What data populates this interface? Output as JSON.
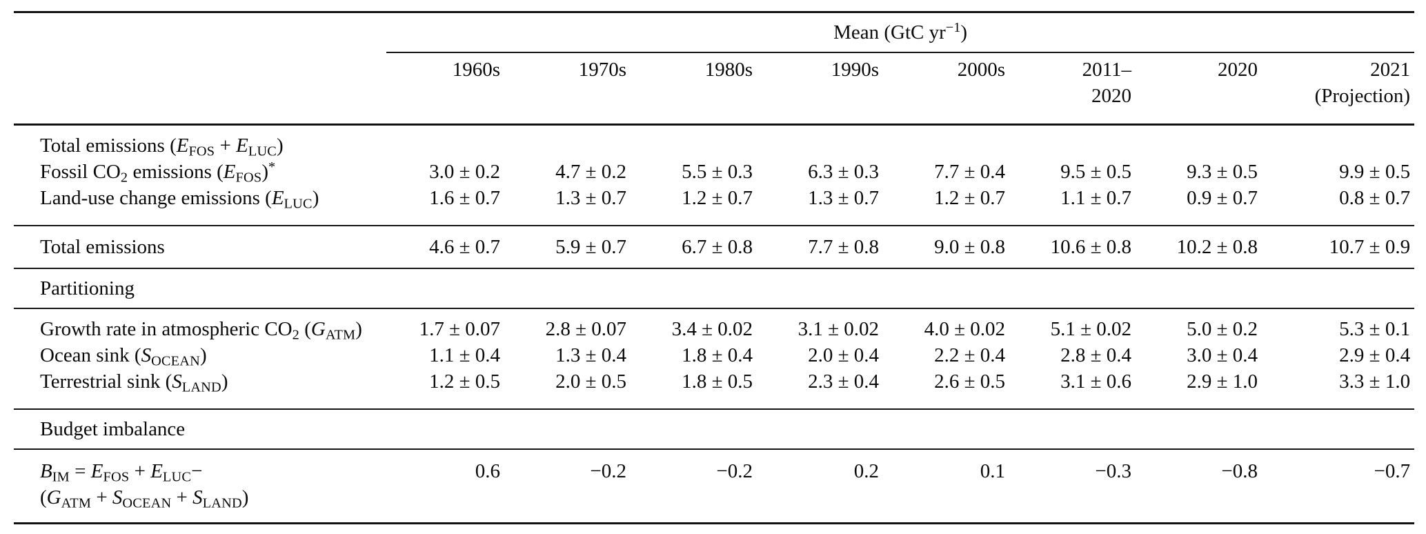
{
  "table": {
    "unit_header": "Mean (GtC yr<sup>−1</sup>)",
    "columns": [
      "1960s",
      "1970s",
      "1980s",
      "1990s",
      "2000s",
      "2011–<br>2020",
      "2020",
      "2021<br>(Projection)"
    ],
    "section_headers": {
      "partitioning": "Partitioning",
      "budget_imbalance": "Budget imbalance"
    },
    "rows": [
      {
        "label": "Total emissions (<i>E</i><sub>FOS</sub> + <i>E</i><sub>LUC</sub>)",
        "values": [
          "",
          "",
          "",
          "",
          "",
          "",
          "",
          ""
        ]
      },
      {
        "label": "Fossil CO<sub>2</sub> emissions (<i>E</i><sub>FOS</sub>)<sup>*</sup>",
        "values": [
          "3.0 ± 0.2",
          "4.7 ± 0.2",
          "5.5 ± 0.3",
          "6.3 ± 0.3",
          "7.7 ± 0.4",
          "9.5 ± 0.5",
          "9.3 ± 0.5",
          "9.9 ± 0.5"
        ]
      },
      {
        "label": "Land-use change emissions (<i>E</i><sub>LUC</sub>)",
        "values": [
          "1.6 ± 0.7",
          "1.3 ± 0.7",
          "1.2 ± 0.7",
          "1.3 ± 0.7",
          "1.2 ± 0.7",
          "1.1 ± 0.7",
          "0.9 ± 0.7",
          "0.8 ± 0.7"
        ]
      },
      {
        "label": "Total emissions",
        "values": [
          "4.6 ± 0.7",
          "5.9 ± 0.7",
          "6.7 ± 0.8",
          "7.7 ± 0.8",
          "9.0 ± 0.8",
          "10.6 ± 0.8",
          "10.2 ± 0.8",
          "10.7 ± 0.9"
        ]
      },
      {
        "label": "Growth rate in atmospheric CO<sub>2</sub> (<i>G</i><sub>ATM</sub>)",
        "values": [
          "1.7 ± 0.07",
          "2.8 ± 0.07",
          "3.4 ± 0.02",
          "3.1 ± 0.02",
          "4.0 ± 0.02",
          "5.1 ± 0.02",
          "5.0 ± 0.2",
          "5.3 ± 0.1"
        ]
      },
      {
        "label": "Ocean sink (<i>S</i><sub>OCEAN</sub>)",
        "values": [
          "1.1 ± 0.4",
          "1.3 ± 0.4",
          "1.8 ± 0.4",
          "2.0 ± 0.4",
          "2.2 ± 0.4",
          "2.8 ± 0.4",
          "3.0 ± 0.4",
          "2.9 ± 0.4"
        ]
      },
      {
        "label": "Terrestrial sink (<i>S</i><sub>LAND</sub>)",
        "values": [
          "1.2 ± 0.5",
          "2.0 ± 0.5",
          "1.8 ± 0.5",
          "2.3 ± 0.4",
          "2.6 ± 0.5",
          "3.1 ± 0.6",
          "2.9 ± 1.0",
          "3.3 ± 1.0"
        ]
      },
      {
        "label": "<i>B</i><sub>IM</sub> = <i>E</i><sub>FOS</sub> + <i>E</i><sub>LUC</sub>−<br>(<i>G</i><sub>ATM</sub> + <i>S</i><sub>OCEAN</sub> + <i>S</i><sub>LAND</sub>)",
        "values": [
          "0.6",
          "−0.2",
          "−0.2",
          "0.2",
          "0.1",
          "−0.3",
          "−0.8",
          "−0.7"
        ]
      }
    ]
  }
}
